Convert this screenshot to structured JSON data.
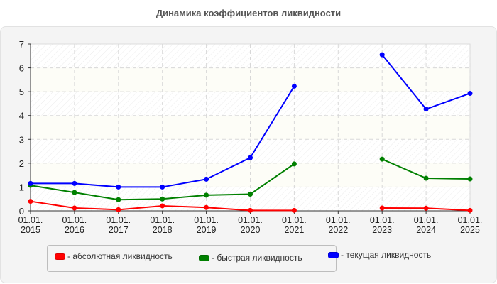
{
  "title": "Динамика коэффициентов ликвидности",
  "legend": [
    {
      "label": "- абсолютная ликвидность",
      "color": "#ff0000"
    },
    {
      "label": "- быстрая ликвидность",
      "color": "#008000"
    },
    {
      "label": "- текущая ликвидность",
      "color": "#0000ff"
    }
  ],
  "chart_data": {
    "type": "line",
    "title": "Динамика коэффициентов ликвидности",
    "xlabel": "",
    "ylabel": "",
    "ylim": [
      0,
      7
    ],
    "y_ticks": [
      "0",
      "1",
      "2",
      "3",
      "4",
      "5",
      "6",
      "7"
    ],
    "categories": [
      "01.01.\n2015",
      "01.01.\n2016",
      "01.01.\n2017",
      "01.01.\n2018",
      "01.01.\n2019",
      "01.01.\n2020",
      "01.01.\n2021",
      "01.01.\n2022",
      "01.01.\n2023",
      "01.01.\n2024",
      "01.01.\n2025"
    ],
    "category_lines": [
      [
        "01.01.",
        "2015"
      ],
      [
        "01.01.",
        "2016"
      ],
      [
        "01.01.",
        "2017"
      ],
      [
        "01.01.",
        "2018"
      ],
      [
        "01.01.",
        "2019"
      ],
      [
        "01.01.",
        "2020"
      ],
      [
        "01.01.",
        "2021"
      ],
      [
        "01.01.",
        "2022"
      ],
      [
        "01.01.",
        "2023"
      ],
      [
        "01.01.",
        "2024"
      ],
      [
        "01.01.",
        "2025"
      ]
    ],
    "grid": true,
    "legend_position": "bottom",
    "series": [
      {
        "name": "абсолютная ликвидность",
        "color": "#ff0000",
        "values": [
          0.4,
          0.12,
          0.05,
          0.21,
          0.14,
          0.02,
          0.02,
          null,
          0.12,
          0.11,
          0.02
        ]
      },
      {
        "name": "быстрая ликвидность",
        "color": "#008000",
        "values": [
          1.07,
          0.77,
          0.47,
          0.5,
          0.66,
          0.7,
          1.97,
          null,
          2.17,
          1.37,
          1.34
        ]
      },
      {
        "name": "текущая ликвидность",
        "color": "#0000ff",
        "values": [
          1.15,
          1.15,
          1.0,
          1.0,
          1.33,
          2.23,
          5.23,
          null,
          6.55,
          4.27,
          4.93
        ]
      }
    ]
  }
}
